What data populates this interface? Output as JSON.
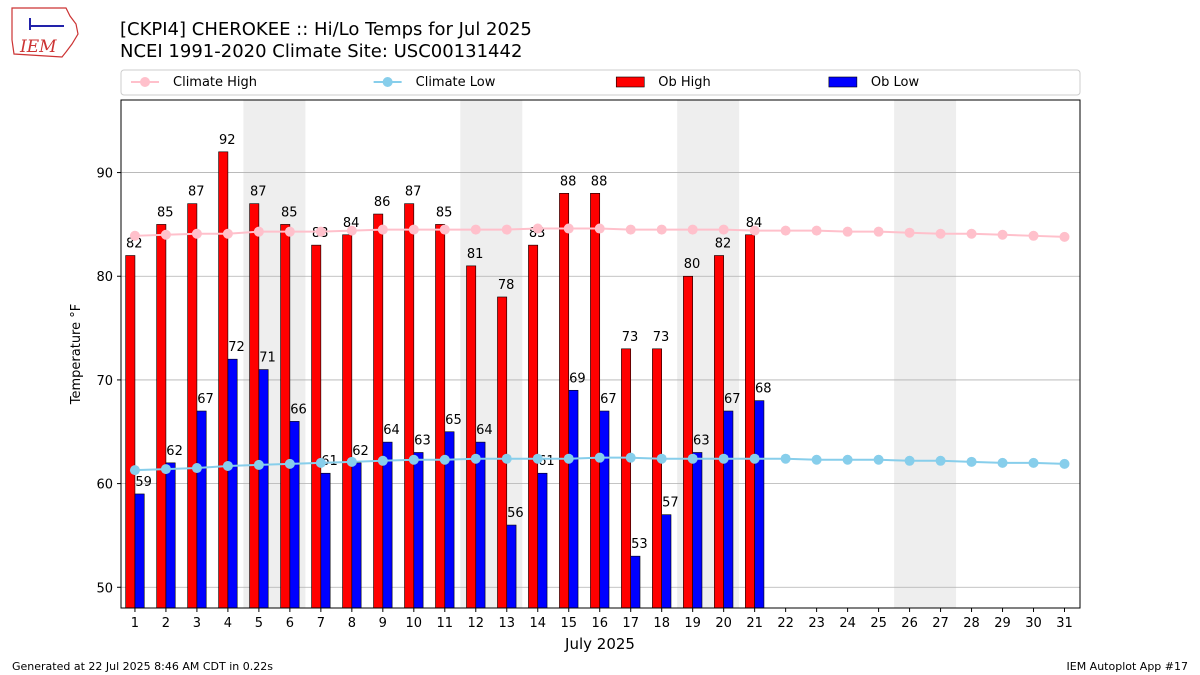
{
  "logo_text": "IEM",
  "chart_data": {
    "type": "bar",
    "title": "[CKPI4] CHEROKEE :: Hi/Lo Temps for Jul 2025",
    "subtitle": "NCEI 1991-2020 Climate Site: USC00131442",
    "ylabel": "Temperature °F",
    "xlabel": "July 2025",
    "footer_left": "Generated at 22 Jul 2025 8:46 AM CDT in 0.22s",
    "footer_right": "IEM Autoplot App #17",
    "x": [
      1,
      2,
      3,
      4,
      5,
      6,
      7,
      8,
      9,
      10,
      11,
      12,
      13,
      14,
      15,
      16,
      17,
      18,
      19,
      20,
      21,
      22,
      23,
      24,
      25,
      26,
      27,
      28,
      29,
      30,
      31
    ],
    "xlim": [
      0.55,
      31.5
    ],
    "xticks": [
      1,
      2,
      3,
      4,
      5,
      6,
      7,
      8,
      9,
      10,
      11,
      12,
      13,
      14,
      15,
      16,
      17,
      18,
      19,
      20,
      21,
      22,
      23,
      24,
      25,
      26,
      27,
      28,
      29,
      30,
      31
    ],
    "ylim": [
      48,
      97
    ],
    "yticks": [
      50,
      60,
      70,
      80,
      90
    ],
    "grid": true,
    "legend": "top",
    "weekend_shading": [
      [
        5,
        6
      ],
      [
        12,
        13
      ],
      [
        19,
        20
      ],
      [
        26,
        27
      ]
    ],
    "shading_color": "#eeeeee",
    "series": [
      {
        "name": "Climate High",
        "type": "line",
        "color": "#ffc0cb",
        "values": [
          83.9,
          84.0,
          84.1,
          84.1,
          84.3,
          84.3,
          84.3,
          84.4,
          84.5,
          84.5,
          84.5,
          84.5,
          84.5,
          84.6,
          84.6,
          84.6,
          84.5,
          84.5,
          84.5,
          84.5,
          84.4,
          84.4,
          84.4,
          84.3,
          84.3,
          84.2,
          84.1,
          84.1,
          84.0,
          83.9,
          83.8
        ]
      },
      {
        "name": "Climate Low",
        "type": "line",
        "color": "#87ceeb",
        "values": [
          61.3,
          61.4,
          61.5,
          61.7,
          61.8,
          61.9,
          62.0,
          62.1,
          62.2,
          62.3,
          62.3,
          62.4,
          62.4,
          62.4,
          62.4,
          62.5,
          62.5,
          62.4,
          62.4,
          62.4,
          62.4,
          62.4,
          62.3,
          62.3,
          62.3,
          62.2,
          62.2,
          62.1,
          62.0,
          62.0,
          61.9
        ]
      },
      {
        "name": "Ob High",
        "type": "bar",
        "color": "#ff0000",
        "values": [
          82,
          85,
          87,
          92,
          87,
          85,
          83,
          84,
          86,
          87,
          85,
          81,
          78,
          83,
          88,
          88,
          73,
          73,
          80,
          82,
          84,
          null,
          null,
          null,
          null,
          null,
          null,
          null,
          null,
          null,
          null
        ]
      },
      {
        "name": "Ob Low",
        "type": "bar",
        "color": "#0000ff",
        "values": [
          59,
          62,
          67,
          72,
          71,
          66,
          61,
          62,
          64,
          63,
          65,
          64,
          56,
          61,
          69,
          67,
          53,
          57,
          63,
          67,
          68,
          null,
          null,
          null,
          null,
          null,
          null,
          null,
          null,
          null,
          null
        ]
      }
    ]
  }
}
